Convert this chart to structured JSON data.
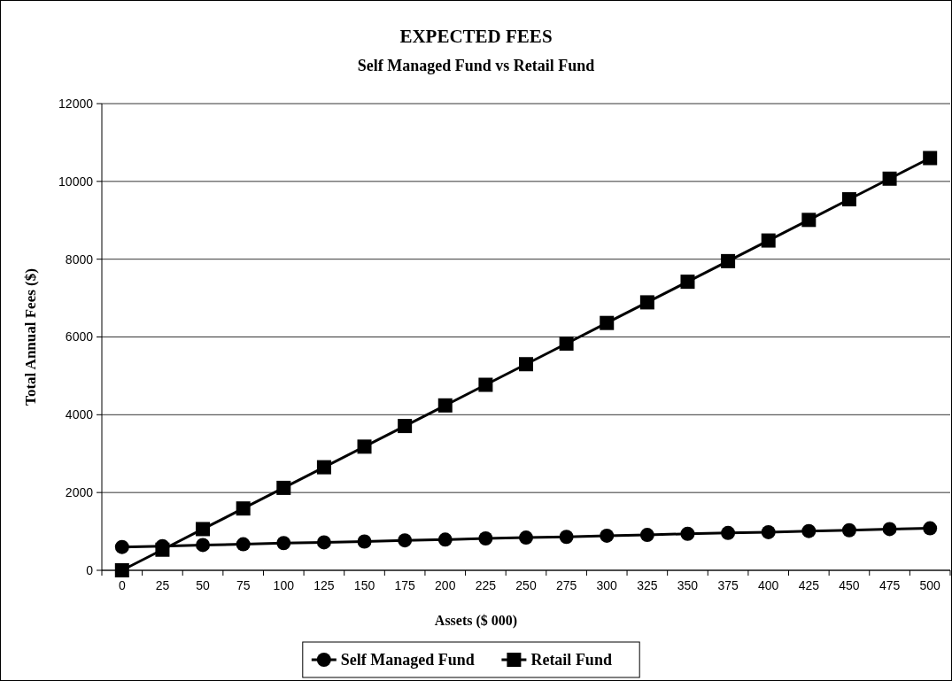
{
  "chart_data": {
    "type": "line",
    "title": "EXPECTED FEES",
    "subtitle": "Self Managed Fund vs Retail Fund",
    "xlabel": "Assets ($ 000)",
    "ylabel": "Total Annual Fees ($)",
    "categories": [
      "0",
      "25",
      "50",
      "75",
      "100",
      "125",
      "150",
      "175",
      "200",
      "225",
      "250",
      "275",
      "300",
      "325",
      "350",
      "375",
      "400",
      "425",
      "450",
      "475",
      "500"
    ],
    "series": [
      {
        "name": "Self Managed Fund",
        "color": "#000000",
        "marker": "circle",
        "values": [
          600,
          620,
          650,
          670,
          700,
          720,
          740,
          770,
          790,
          820,
          840,
          860,
          890,
          910,
          940,
          960,
          980,
          1010,
          1030,
          1060,
          1080
        ]
      },
      {
        "name": "Retail Fund",
        "color": "#000000",
        "marker": "square",
        "values": [
          0,
          530,
          1060,
          1590,
          2120,
          2650,
          3180,
          3710,
          4240,
          4770,
          5300,
          5830,
          6360,
          6890,
          7420,
          7950,
          8480,
          9010,
          9540,
          10070,
          10600
        ]
      }
    ],
    "ylim": [
      0,
      12000
    ],
    "yticks": [
      0,
      2000,
      4000,
      6000,
      8000,
      10000,
      12000
    ],
    "grid": "y",
    "legend": "bottom",
    "line_style": "solid"
  }
}
